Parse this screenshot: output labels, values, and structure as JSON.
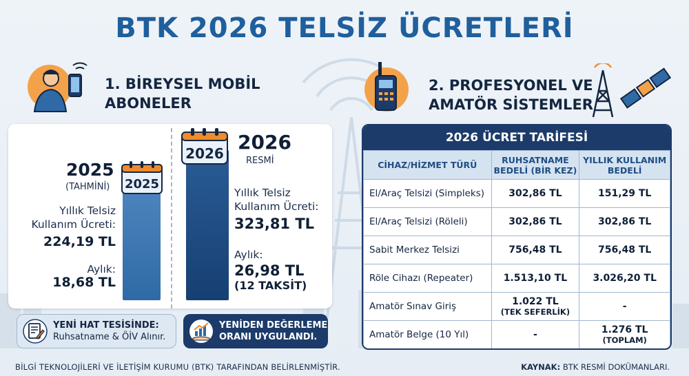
{
  "title": "BTK 2026 TELSİZ ÜCRETLERİ",
  "section1": {
    "title": "1. BİREYSEL MOBİL ABONELER",
    "year_2025": {
      "cal_label": "2025",
      "year": "2025",
      "sub": "(TAHMİNİ)",
      "fee_label": "Yıllık Telsiz Kullanım Ücreti:",
      "fee_value": "224,19 TL",
      "monthly_label": "Aylık:",
      "monthly_value": "18,68 TL"
    },
    "year_2026": {
      "cal_label": "2026",
      "year": "2026",
      "sub": "RESMİ",
      "fee_label": "Yıllık Telsiz Kullanım Ücreti:",
      "fee_value": "323,81 TL",
      "monthly_label": "Aylık:",
      "monthly_value": "26,98 TL",
      "monthly_note": "(12 TAKSİT)"
    },
    "info1": {
      "bold": "YENİ HAT TESİSİNDE:",
      "text": "Ruhsatname & ÖİV Alınır."
    },
    "info2": {
      "text": "YENİDEN DEĞERLEME ORANI UYGULANDI."
    }
  },
  "section2": {
    "title": "2. PROFESYONEL VE AMATÖR SİSTEMLER",
    "table_title": "2026 ÜCRET TARİFESİ",
    "headers": [
      "CİHAZ/HİZMET TÜRÜ",
      "RUHSATNAME BEDELİ (BİR KEZ)",
      "YILLIK KULLANIM BEDELİ"
    ],
    "rows": [
      {
        "name": "El/Araç Telsizi (Simpleks)",
        "license": "302,86 TL",
        "license_note": "",
        "annual": "151,29 TL",
        "annual_note": ""
      },
      {
        "name": "El/Araç Telsizi (Röleli)",
        "license": "302,86 TL",
        "license_note": "",
        "annual": "302,86 TL",
        "annual_note": ""
      },
      {
        "name": "Sabit Merkez Telsizi",
        "license": "756,48 TL",
        "license_note": "",
        "annual": "756,48 TL",
        "annual_note": ""
      },
      {
        "name": "Röle Cihazı (Repeater)",
        "license": "1.513,10 TL",
        "license_note": "",
        "annual": "3.026,20 TL",
        "annual_note": ""
      },
      {
        "name": "Amatör Sınav Giriş",
        "license": "1.022 TL",
        "license_note": "(TEK SEFERLİK)",
        "annual": "-",
        "annual_note": ""
      },
      {
        "name": "Amatör Belge (10 Yıl)",
        "license": "-",
        "license_note": "",
        "annual": "1.276 TL",
        "annual_note": "(TOPLAM)"
      }
    ]
  },
  "footer": {
    "left": "BİLGİ TEKNOLOJİLERİ VE İLETİŞİM KURUMU (BTK) TARAFINDAN BELİRLENMİŞTİR.",
    "source_label": "KAYNAK:",
    "source_value": "BTK RESMİ DOKÜMANLARI."
  },
  "colors": {
    "title": "#1f5f9c",
    "navy": "#1c3b6a",
    "accent_orange": "#f08a2c",
    "bar_2025": "#3b76b2",
    "bar_2026": "#1c4a80"
  }
}
